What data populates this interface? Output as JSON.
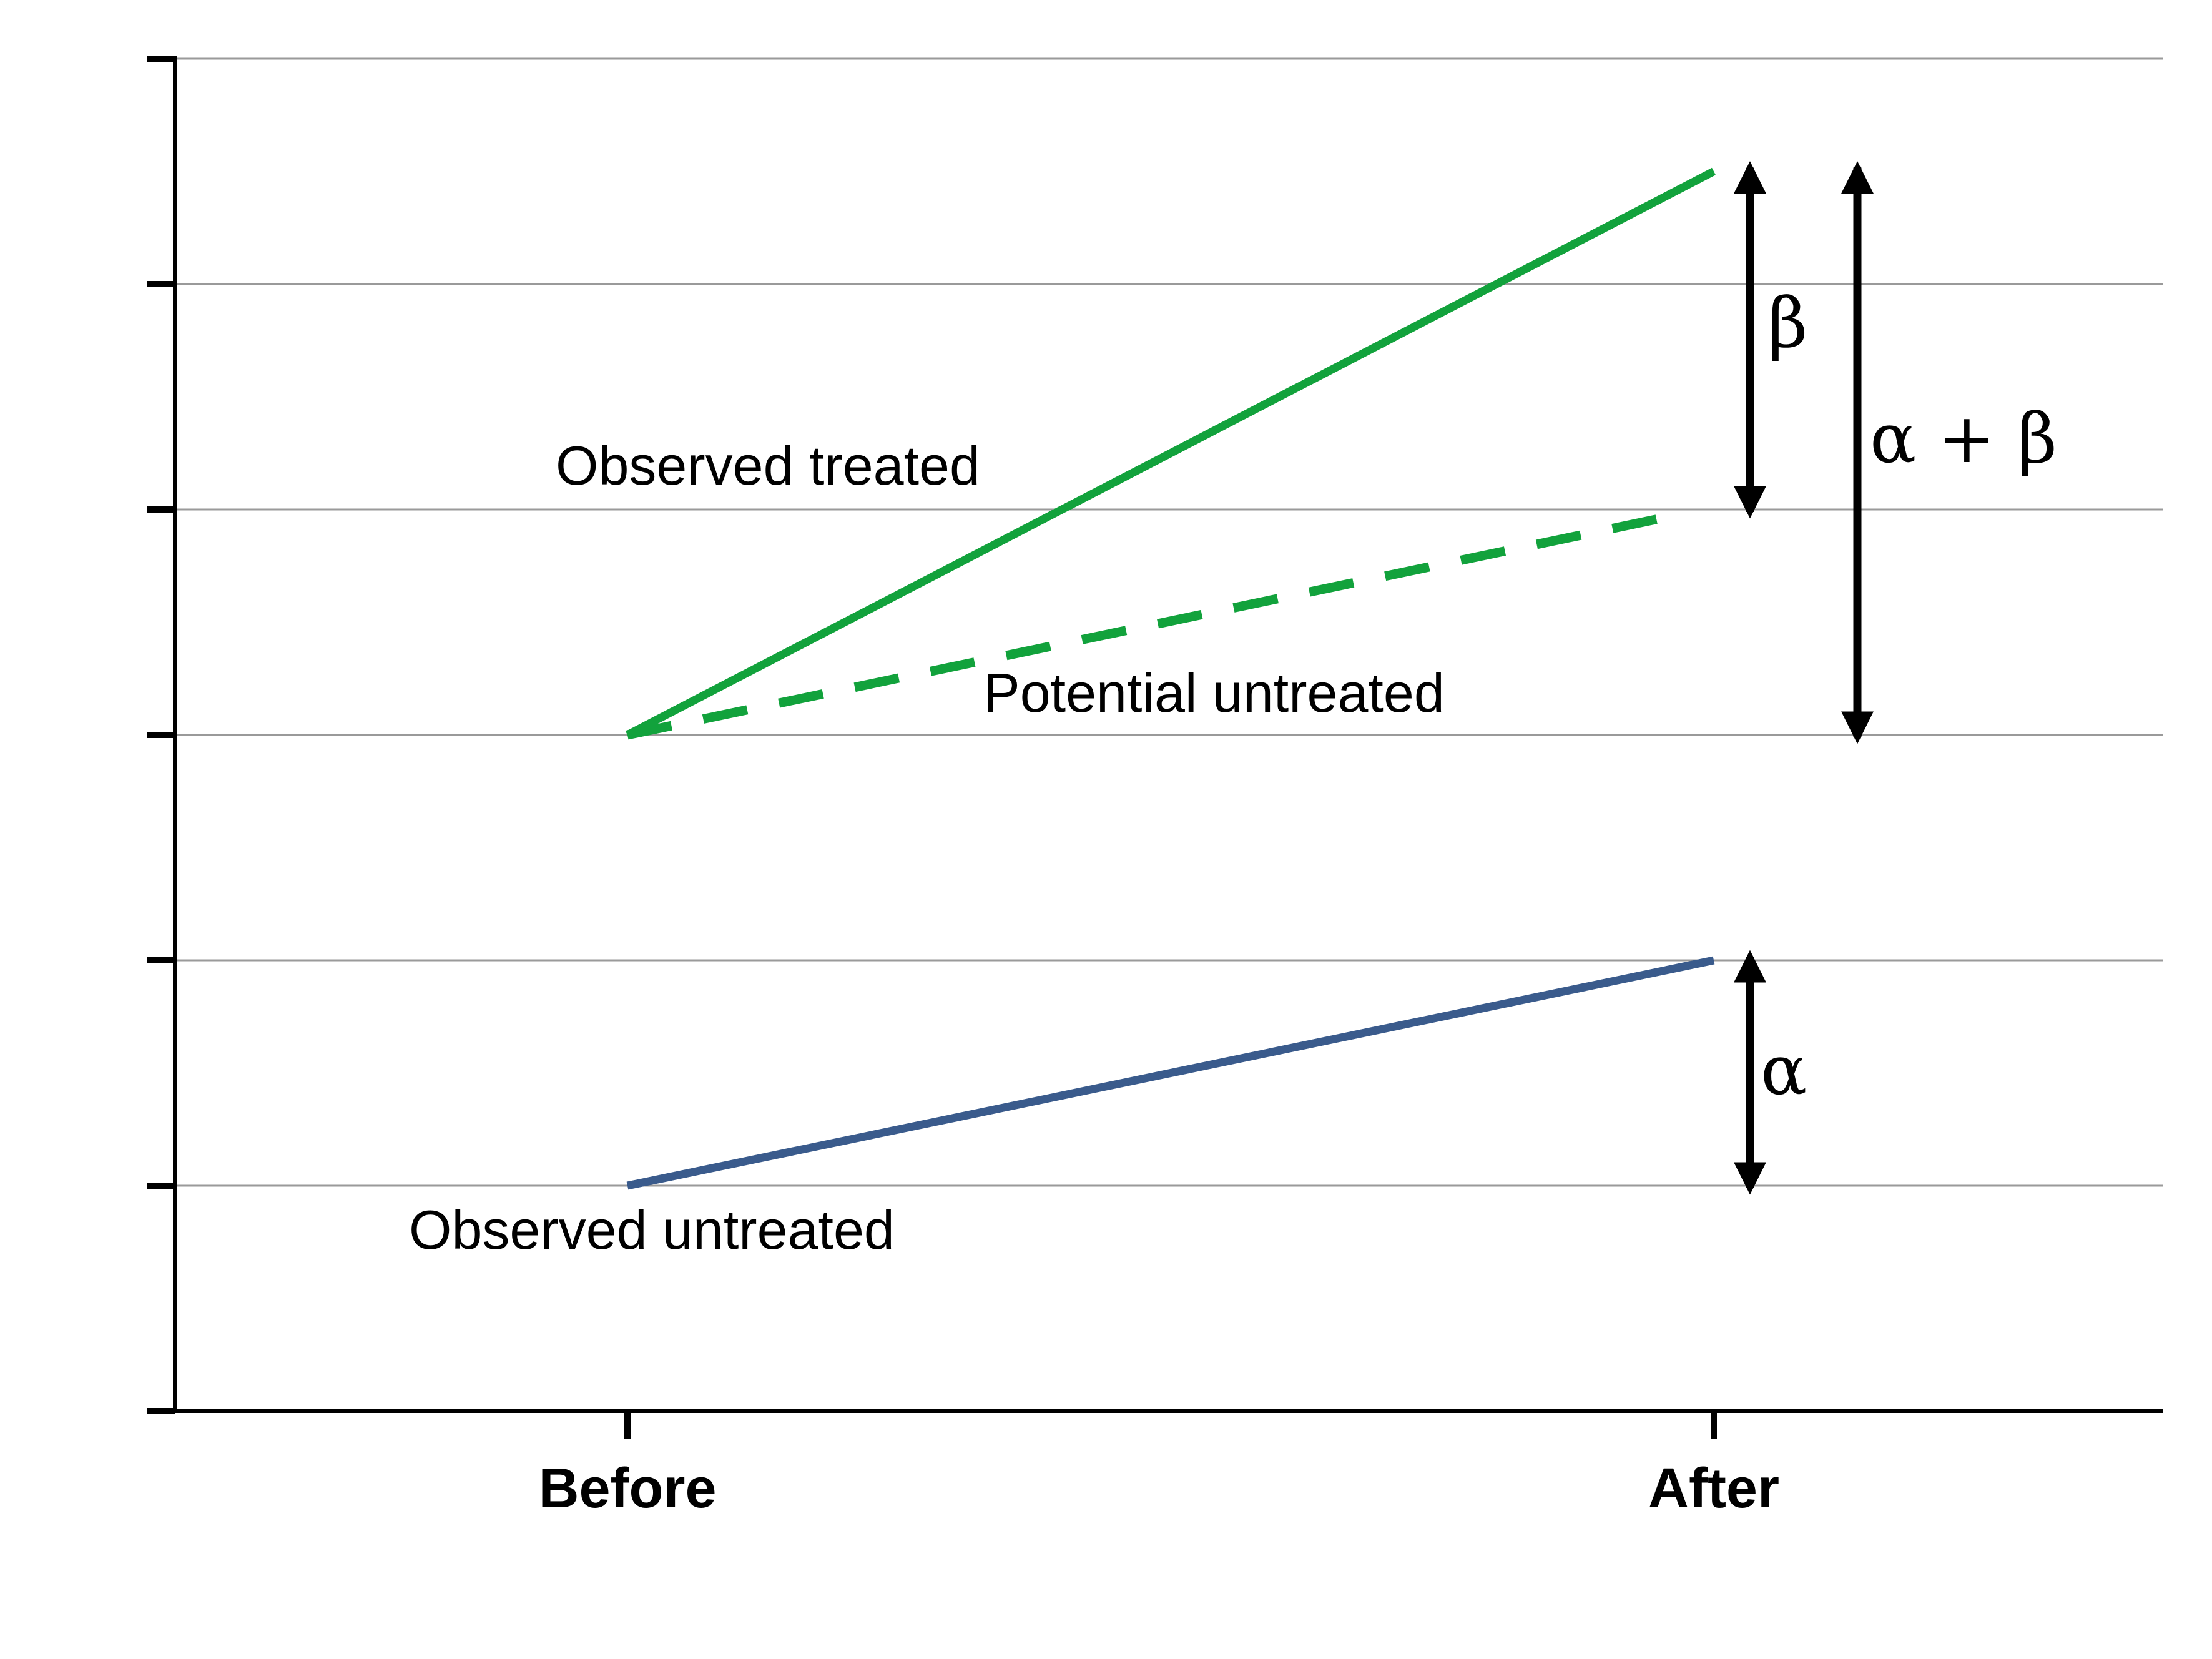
{
  "chart_data": {
    "type": "line",
    "categories": [
      "Before",
      "After"
    ],
    "ylim": [
      0,
      6
    ],
    "grid": true,
    "series": [
      {
        "name": "Observed treated",
        "values": [
          3,
          5.5
        ],
        "color": "#12a23c",
        "dash": false
      },
      {
        "name": "Potential untreated",
        "values": [
          3,
          4
        ],
        "color": "#12a23c",
        "dash": true
      },
      {
        "name": "Observed untreated",
        "values": [
          1,
          2
        ],
        "color": "#3a5b8c",
        "dash": false
      }
    ],
    "annotations": [
      {
        "label": "β",
        "from": 4,
        "to": 5.5,
        "at": "After"
      },
      {
        "label": "α + β",
        "from": 3,
        "to": 5.5,
        "at": "After"
      },
      {
        "label": "α",
        "from": 1,
        "to": 2,
        "at": "After"
      }
    ]
  }
}
